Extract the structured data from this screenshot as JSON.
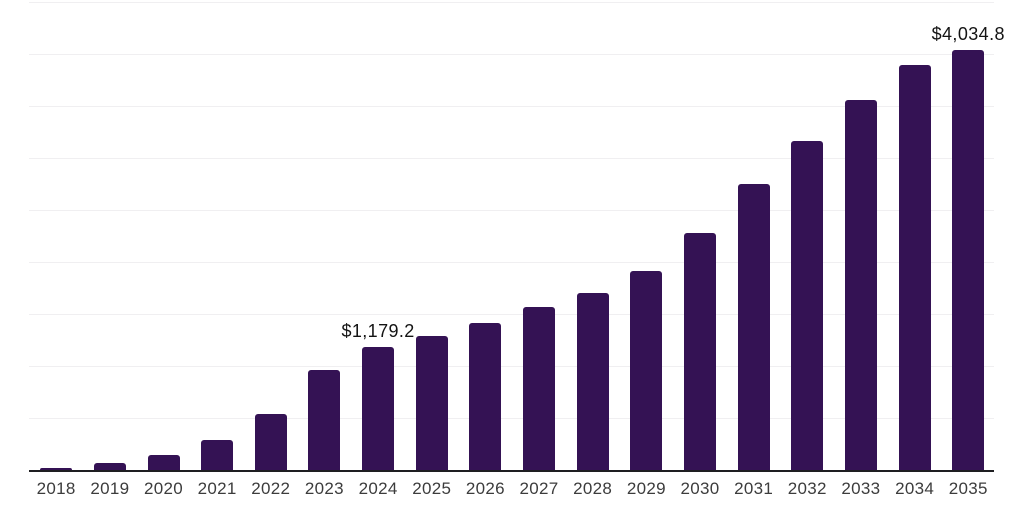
{
  "chart": {
    "background_color": "#ffffff",
    "bar_color": "#341254",
    "grid_color": "#f0eff1",
    "axis_color": "#1e1e21",
    "tick_label_color": "#3c3c3c",
    "data_label_color": "#141414"
  },
  "chart_data": {
    "type": "bar",
    "title": "",
    "xlabel": "",
    "ylabel": "",
    "categories": [
      "2018",
      "2019",
      "2020",
      "2021",
      "2022",
      "2023",
      "2024",
      "2025",
      "2026",
      "2027",
      "2028",
      "2029",
      "2030",
      "2031",
      "2032",
      "2033",
      "2034",
      "2035"
    ],
    "values": [
      24,
      72,
      149,
      288,
      537,
      960,
      1179.2,
      1291,
      1416,
      1565,
      1704,
      1915,
      2275,
      2746,
      3163,
      3562,
      3893,
      4034.8
    ],
    "data_labels": {
      "2024": "$1,179.2",
      "2035": "$4,034.8"
    },
    "ylim": [
      0,
      4500
    ],
    "gridline_step": 500,
    "grid": true,
    "legend": false,
    "y_axis_labels_visible": false
  }
}
